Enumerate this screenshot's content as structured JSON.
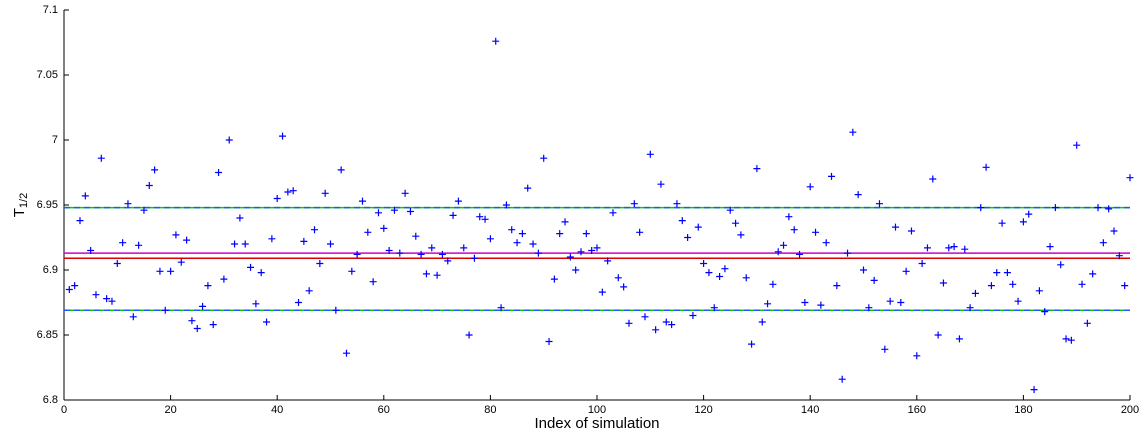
{
  "chart_data": {
    "type": "scatter",
    "xlabel": "Index of simulation",
    "ylabel": "T",
    "ylabel_subscript": "1/2",
    "xlim": [
      0,
      200
    ],
    "ylim": [
      6.8,
      7.1
    ],
    "xticks": [
      0,
      20,
      40,
      60,
      80,
      100,
      120,
      140,
      160,
      180,
      200
    ],
    "yticks": [
      6.8,
      6.85,
      6.9,
      6.95,
      7,
      7.05,
      7.1
    ],
    "grid": false,
    "marker": "+",
    "color": "#0000ff",
    "x": [
      1,
      2,
      3,
      4,
      5,
      6,
      7,
      8,
      9,
      10,
      11,
      12,
      13,
      14,
      15,
      16,
      17,
      18,
      19,
      20,
      21,
      22,
      23,
      24,
      25,
      26,
      27,
      28,
      29,
      30,
      31,
      32,
      33,
      34,
      35,
      36,
      37,
      38,
      39,
      40,
      41,
      42,
      43,
      44,
      45,
      46,
      47,
      48,
      49,
      50,
      51,
      52,
      53,
      54,
      55,
      56,
      57,
      58,
      59,
      60,
      61,
      62,
      63,
      64,
      65,
      66,
      67,
      68,
      69,
      70,
      71,
      72,
      73,
      74,
      75,
      76,
      77,
      78,
      79,
      80,
      81,
      82,
      83,
      84,
      85,
      86,
      87,
      88,
      89,
      90,
      91,
      92,
      93,
      94,
      95,
      96,
      97,
      98,
      99,
      100,
      101,
      102,
      103,
      104,
      105,
      106,
      107,
      108,
      109,
      110,
      111,
      112,
      113,
      114,
      115,
      116,
      117,
      118,
      119,
      120,
      121,
      122,
      123,
      124,
      125,
      126,
      127,
      128,
      129,
      130,
      131,
      132,
      133,
      134,
      135,
      136,
      137,
      138,
      139,
      140,
      141,
      142,
      143,
      144,
      145,
      146,
      147,
      148,
      149,
      150,
      151,
      152,
      153,
      154,
      155,
      156,
      157,
      158,
      159,
      160,
      161,
      162,
      163,
      164,
      165,
      166,
      167,
      168,
      169,
      170,
      171,
      172,
      173,
      174,
      175,
      176,
      177,
      178,
      179,
      180,
      181,
      182,
      183,
      184,
      185,
      186,
      187,
      188,
      189,
      190,
      191,
      192,
      193,
      194,
      195,
      196,
      197,
      198,
      199,
      200
    ],
    "values": [
      6.885,
      6.888,
      6.938,
      6.957,
      6.915,
      6.881,
      6.986,
      6.878,
      6.876,
      6.905,
      6.921,
      6.951,
      6.864,
      6.919,
      6.946,
      6.965,
      6.977,
      6.899,
      6.869,
      6.899,
      6.927,
      6.906,
      6.923,
      6.861,
      6.855,
      6.872,
      6.888,
      6.858,
      6.975,
      6.893,
      7.0,
      6.92,
      6.94,
      6.92,
      6.902,
      6.874,
      6.898,
      6.86,
      6.924,
      6.955,
      7.003,
      6.96,
      6.961,
      6.875,
      6.922,
      6.884,
      6.931,
      6.905,
      6.959,
      6.92,
      6.869,
      6.977,
      6.836,
      6.899,
      6.912,
      6.953,
      6.929,
      6.891,
      6.944,
      6.932,
      6.915,
      6.946,
      6.913,
      6.959,
      6.945,
      6.926,
      6.912,
      6.897,
      6.917,
      6.896,
      6.912,
      6.907,
      6.942,
      6.953,
      6.917,
      6.85,
      6.909,
      6.941,
      6.939,
      6.924,
      7.076,
      6.871,
      6.95,
      6.931,
      6.921,
      6.928,
      6.963,
      6.92,
      6.913,
      6.986,
      6.845,
      6.893,
      6.928,
      6.937,
      6.91,
      6.9,
      6.914,
      6.928,
      6.915,
      6.917,
      6.883,
      6.907,
      6.944,
      6.894,
      6.887,
      6.859,
      6.951,
      6.929,
      6.864,
      6.989,
      6.854,
      6.966,
      6.86,
      6.858,
      6.951,
      6.938,
      6.925,
      6.865,
      6.933,
      6.905,
      6.898,
      6.871,
      6.895,
      6.901,
      6.946,
      6.936,
      6.927,
      6.894,
      6.843,
      6.978,
      6.86,
      6.874,
      6.889,
      6.914,
      6.919,
      6.941,
      6.931,
      6.912,
      6.875,
      6.964,
      6.929,
      6.873,
      6.921,
      6.972,
      6.888,
      6.816,
      6.913,
      7.006,
      6.958,
      6.9,
      6.871,
      6.892,
      6.951,
      6.839,
      6.876,
      6.933,
      6.875,
      6.899,
      6.93,
      6.834,
      6.905,
      6.917,
      6.97,
      6.85,
      6.89,
      6.917,
      6.918,
      6.847,
      6.916,
      6.871,
      6.882,
      6.948,
      6.979,
      6.888,
      6.898,
      6.936,
      6.898,
      6.889,
      6.876,
      6.937,
      6.943,
      6.808,
      6.884,
      6.868,
      6.918,
      6.948,
      6.904,
      6.847,
      6.846,
      6.996,
      6.889,
      6.859,
      6.897,
      6.948,
      6.921,
      6.947,
      6.93,
      6.911,
      6.888,
      6.971
    ],
    "reference_lines": [
      {
        "value": 6.948,
        "color": "#00cc00",
        "style": "solid"
      },
      {
        "value": 6.948,
        "color": "#2255ff",
        "style": "dashed"
      },
      {
        "value": 6.869,
        "color": "#00cc00",
        "style": "solid"
      },
      {
        "value": 6.869,
        "color": "#2255ff",
        "style": "dashed"
      },
      {
        "value": 6.913,
        "color": "#cc00cc",
        "style": "solid"
      },
      {
        "value": 6.909,
        "color": "#dd0000",
        "style": "solid"
      }
    ]
  }
}
